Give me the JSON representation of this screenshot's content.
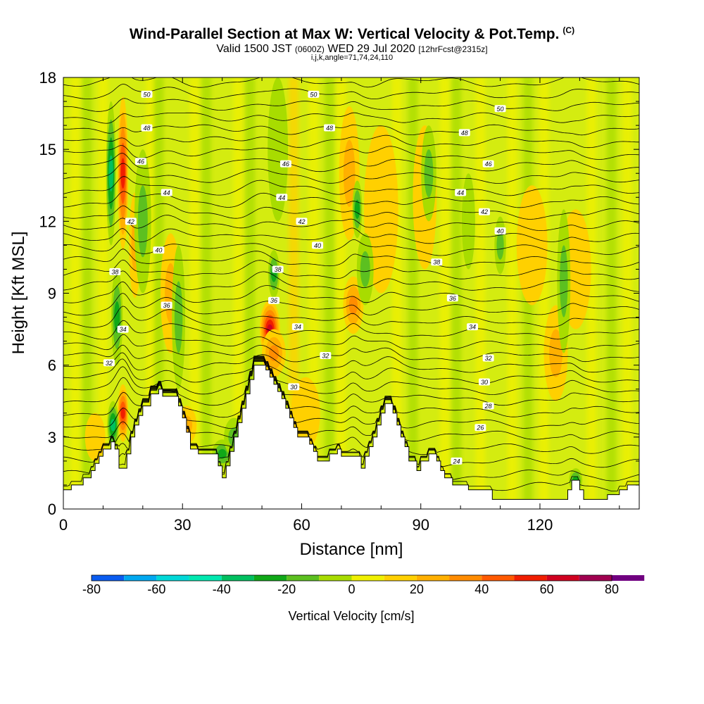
{
  "header": {
    "title": "Wind-Parallel Section at Max W: Vertical Velocity & Pot.Temp.",
    "copyright": "(C)",
    "valid_prefix": "Valid 1500 JST",
    "valid_utc": "(0600Z)",
    "valid_date": "WED 29 Jul 2020",
    "forecast": "[12hrFcst@2315z]",
    "indices": "i,j,k,angle=71,74,24,110"
  },
  "chart_data": {
    "type": "heatmap",
    "xlabel": "Distance [nm]",
    "ylabel": "Height [Kft MSL]",
    "xlim": [
      0,
      145
    ],
    "ylim": [
      0,
      18
    ],
    "x_ticks": [
      "0",
      "30",
      "60",
      "90",
      "120"
    ],
    "y_ticks": [
      "0",
      "3",
      "6",
      "9",
      "12",
      "15",
      "18"
    ],
    "colorbar": {
      "title": "Vertical Velocity [cm/s]",
      "labels": [
        "-80",
        "-60",
        "-40",
        "-20",
        "0",
        "20",
        "40",
        "60",
        "80"
      ],
      "colors": [
        "#0000ff",
        "#0a5cf0",
        "#00a8f0",
        "#00d8d8",
        "#00e8b0",
        "#00c060",
        "#10a818",
        "#5cc020",
        "#a8dc00",
        "#f0f000",
        "#ffd000",
        "#ffb000",
        "#ff8c00",
        "#ff5a00",
        "#f01e00",
        "#d00020",
        "#a00050",
        "#700080"
      ]
    },
    "terrain": [
      [
        0,
        0.8
      ],
      [
        2,
        0.8
      ],
      [
        2,
        1
      ],
      [
        5,
        1
      ],
      [
        5,
        1.3
      ],
      [
        7,
        1.3
      ],
      [
        7,
        1.6
      ],
      [
        8,
        1.6
      ],
      [
        8,
        1.9
      ],
      [
        9,
        1.9
      ],
      [
        9,
        2.2
      ],
      [
        10,
        2.2
      ],
      [
        10,
        2.5
      ],
      [
        12,
        2.5
      ],
      [
        12,
        2.8
      ],
      [
        13,
        2.8
      ],
      [
        13,
        2.5
      ],
      [
        14,
        2.5
      ],
      [
        14,
        1.7
      ],
      [
        16,
        1.7
      ],
      [
        16,
        2.3
      ],
      [
        17,
        2.3
      ],
      [
        17,
        3
      ],
      [
        18,
        3
      ],
      [
        18,
        3.5
      ],
      [
        19,
        3.5
      ],
      [
        19,
        3.9
      ],
      [
        20,
        3.9
      ],
      [
        20,
        4.3
      ],
      [
        22,
        4.3
      ],
      [
        22,
        4.8
      ],
      [
        24,
        4.8
      ],
      [
        24,
        5
      ],
      [
        25,
        5
      ],
      [
        25,
        4.7
      ],
      [
        29,
        4.7
      ],
      [
        29,
        4.3
      ],
      [
        30,
        4.3
      ],
      [
        30,
        3.8
      ],
      [
        31,
        3.8
      ],
      [
        31,
        3.2
      ],
      [
        32,
        3.2
      ],
      [
        32,
        2.5
      ],
      [
        34,
        2.5
      ],
      [
        34,
        2.3
      ],
      [
        39,
        2.3
      ],
      [
        39,
        1.8
      ],
      [
        40,
        1.8
      ],
      [
        40,
        1.3
      ],
      [
        41,
        1.3
      ],
      [
        41,
        1.8
      ],
      [
        42,
        1.8
      ],
      [
        42,
        2.4
      ],
      [
        43,
        2.4
      ],
      [
        43,
        3
      ],
      [
        44,
        3
      ],
      [
        44,
        3.6
      ],
      [
        45,
        3.6
      ],
      [
        45,
        4.2
      ],
      [
        46,
        4.2
      ],
      [
        46,
        4.8
      ],
      [
        47,
        4.8
      ],
      [
        47,
        5.4
      ],
      [
        48,
        5.4
      ],
      [
        48,
        6
      ],
      [
        51,
        6
      ],
      [
        51,
        5.8
      ],
      [
        52,
        5.8
      ],
      [
        52,
        5.5
      ],
      [
        53,
        5.5
      ],
      [
        53,
        5.2
      ],
      [
        54,
        5.2
      ],
      [
        54,
        4.9
      ],
      [
        55,
        4.9
      ],
      [
        55,
        4.6
      ],
      [
        56,
        4.6
      ],
      [
        56,
        4.2
      ],
      [
        57,
        4.2
      ],
      [
        57,
        3.8
      ],
      [
        58,
        3.8
      ],
      [
        58,
        3.4
      ],
      [
        59,
        3.4
      ],
      [
        59,
        3
      ],
      [
        62,
        3
      ],
      [
        62,
        2.7
      ],
      [
        63,
        2.7
      ],
      [
        63,
        2.4
      ],
      [
        64,
        2.4
      ],
      [
        64,
        2
      ],
      [
        67,
        2
      ],
      [
        67,
        2.3
      ],
      [
        69,
        2.3
      ],
      [
        69,
        2.5
      ],
      [
        70,
        2.5
      ],
      [
        70,
        2.2
      ],
      [
        75,
        2.2
      ],
      [
        75,
        1.7
      ],
      [
        76,
        1.7
      ],
      [
        76,
        2.2
      ],
      [
        77,
        2.2
      ],
      [
        77,
        2.6
      ],
      [
        78,
        2.6
      ],
      [
        78,
        3
      ],
      [
        79,
        3
      ],
      [
        79,
        3.5
      ],
      [
        80,
        3.5
      ],
      [
        80,
        4
      ],
      [
        81,
        4
      ],
      [
        81,
        4.4
      ],
      [
        83,
        4.4
      ],
      [
        83,
        4
      ],
      [
        84,
        4
      ],
      [
        84,
        3.5
      ],
      [
        85,
        3.5
      ],
      [
        85,
        3
      ],
      [
        86,
        3
      ],
      [
        86,
        2.6
      ],
      [
        87,
        2.6
      ],
      [
        87,
        2
      ],
      [
        89,
        2
      ],
      [
        89,
        1.6
      ],
      [
        90,
        1.6
      ],
      [
        90,
        2
      ],
      [
        92,
        2
      ],
      [
        92,
        2.3
      ],
      [
        94,
        2.3
      ],
      [
        94,
        2
      ],
      [
        95,
        2
      ],
      [
        95,
        1.6
      ],
      [
        96,
        1.6
      ],
      [
        96,
        1.3
      ],
      [
        98,
        1.3
      ],
      [
        98,
        1
      ],
      [
        102,
        1
      ],
      [
        102,
        0.8
      ],
      [
        108,
        0.8
      ],
      [
        108,
        0.4
      ],
      [
        127,
        0.4
      ],
      [
        127,
        0.8
      ],
      [
        128,
        0.8
      ],
      [
        128,
        1.2
      ],
      [
        130,
        1.2
      ],
      [
        130,
        0.8
      ],
      [
        131,
        0.8
      ],
      [
        131,
        0.4
      ],
      [
        137,
        0.4
      ],
      [
        137,
        0.6
      ],
      [
        140,
        0.6
      ],
      [
        140,
        0.8
      ],
      [
        142,
        0.8
      ],
      [
        142,
        1
      ],
      [
        145,
        1
      ]
    ],
    "updrafts": [
      {
        "x": 15,
        "y": 14,
        "w": 0.45,
        "h": 3.2,
        "value": 55
      },
      {
        "x": 15,
        "y": 4,
        "w": 0.45,
        "h": 1.2,
        "value": 50
      },
      {
        "x": 18,
        "y": 11,
        "w": 0.5,
        "h": 2.2,
        "value": 25
      },
      {
        "x": 27,
        "y": 9,
        "w": 1,
        "h": 2.5,
        "value": 22
      },
      {
        "x": 31,
        "y": 3.5,
        "w": 1,
        "h": 0.8,
        "value": 28
      },
      {
        "x": 52,
        "y": 7.5,
        "w": 1,
        "h": 1.2,
        "value": 65
      },
      {
        "x": 53,
        "y": 6.5,
        "w": 1.2,
        "h": 1,
        "value": 30
      },
      {
        "x": 72,
        "y": 14,
        "w": 1,
        "h": 2.8,
        "value": 22
      },
      {
        "x": 73,
        "y": 8.5,
        "w": 1,
        "h": 1.2,
        "value": 32
      },
      {
        "x": 80,
        "y": 12.5,
        "w": 1.8,
        "h": 3.5,
        "value": 15
      },
      {
        "x": 91,
        "y": 13,
        "w": 1.2,
        "h": 3,
        "value": 18
      },
      {
        "x": 118,
        "y": 11,
        "w": 1.6,
        "h": 2.5,
        "value": 16
      },
      {
        "x": 124,
        "y": 6.5,
        "w": 1.2,
        "h": 2,
        "value": 28
      },
      {
        "x": 129,
        "y": 10,
        "w": 1.6,
        "h": 2.5,
        "value": 18
      },
      {
        "x": 61,
        "y": 4,
        "w": 1.5,
        "h": 1.5,
        "value": 18
      },
      {
        "x": 8,
        "y": 3,
        "w": 1,
        "h": 1,
        "value": 15
      }
    ],
    "downdrafts": [
      {
        "x": 12,
        "y": 14,
        "w": 0.4,
        "h": 3,
        "value": -42
      },
      {
        "x": 13.5,
        "y": 8,
        "w": 0.5,
        "h": 2,
        "value": -30
      },
      {
        "x": 12.5,
        "y": 3.5,
        "w": 0.5,
        "h": 1,
        "value": -40
      },
      {
        "x": 20,
        "y": 12,
        "w": 0.8,
        "h": 3,
        "value": -22
      },
      {
        "x": 29,
        "y": 8,
        "w": 0.6,
        "h": 3,
        "value": -22
      },
      {
        "x": 40,
        "y": 2.3,
        "w": 1,
        "h": 0.6,
        "value": -30
      },
      {
        "x": 53,
        "y": 9.8,
        "w": 0.5,
        "h": 1,
        "value": -30
      },
      {
        "x": 54,
        "y": 15,
        "w": 1,
        "h": 3,
        "value": -18
      },
      {
        "x": 74,
        "y": 12.5,
        "w": 0.4,
        "h": 1.2,
        "value": -35
      },
      {
        "x": 76,
        "y": 10,
        "w": 0.8,
        "h": 1.5,
        "value": -22
      },
      {
        "x": 92,
        "y": 14,
        "w": 0.7,
        "h": 2,
        "value": -20
      },
      {
        "x": 102,
        "y": 12,
        "w": 0.6,
        "h": 2,
        "value": -18
      },
      {
        "x": 110,
        "y": 11,
        "w": 0.5,
        "h": 1.2,
        "value": -20
      },
      {
        "x": 126,
        "y": 9.5,
        "w": 0.6,
        "h": 3,
        "value": -28
      },
      {
        "x": 129,
        "y": 1.2,
        "w": 0.6,
        "h": 0.5,
        "value": -30
      },
      {
        "x": 43,
        "y": 3,
        "w": 1,
        "h": 0.8,
        "value": -25
      }
    ],
    "isentropes": {
      "base_y": [
        0.9,
        1.4,
        1.95,
        2.5,
        3.05,
        3.55,
        4.05,
        4.55,
        5.0,
        5.45,
        5.9,
        6.35,
        6.8,
        7.3,
        7.8,
        8.3,
        8.8,
        9.3,
        9.8,
        10.3,
        10.8,
        11.3,
        11.8,
        12.3,
        12.8,
        13.3,
        13.8,
        14.3,
        14.8,
        15.3,
        15.8,
        16.3,
        16.8,
        17.3,
        17.8
      ]
    },
    "contour_labels": [
      {
        "text": "50",
        "x": 21,
        "y": 17.3
      },
      {
        "text": "50",
        "x": 63,
        "y": 17.3
      },
      {
        "text": "50",
        "x": 110,
        "y": 16.7
      },
      {
        "text": "48",
        "x": 21,
        "y": 15.9
      },
      {
        "text": "48",
        "x": 67,
        "y": 15.9
      },
      {
        "text": "48",
        "x": 101,
        "y": 15.7
      },
      {
        "text": "46",
        "x": 19.5,
        "y": 14.5
      },
      {
        "text": "46",
        "x": 56,
        "y": 14.4
      },
      {
        "text": "46",
        "x": 107,
        "y": 14.4
      },
      {
        "text": "44",
        "x": 26,
        "y": 13.2
      },
      {
        "text": "44",
        "x": 55,
        "y": 13.0
      },
      {
        "text": "44",
        "x": 100,
        "y": 13.2
      },
      {
        "text": "42",
        "x": 17,
        "y": 12.0
      },
      {
        "text": "42",
        "x": 60,
        "y": 12.0
      },
      {
        "text": "42",
        "x": 106,
        "y": 12.4
      },
      {
        "text": "40",
        "x": 24,
        "y": 10.8
      },
      {
        "text": "40",
        "x": 64,
        "y": 11.0
      },
      {
        "text": "40",
        "x": 110,
        "y": 11.6
      },
      {
        "text": "38",
        "x": 13,
        "y": 9.9
      },
      {
        "text": "38",
        "x": 54,
        "y": 10.0
      },
      {
        "text": "38",
        "x": 94,
        "y": 10.3
      },
      {
        "text": "36",
        "x": 26,
        "y": 8.5
      },
      {
        "text": "36",
        "x": 53,
        "y": 8.7
      },
      {
        "text": "36",
        "x": 98,
        "y": 8.8
      },
      {
        "text": "34",
        "x": 15,
        "y": 7.5
      },
      {
        "text": "34",
        "x": 59,
        "y": 7.6
      },
      {
        "text": "34",
        "x": 103,
        "y": 7.6
      },
      {
        "text": "32",
        "x": 11.5,
        "y": 6.1
      },
      {
        "text": "32",
        "x": 66,
        "y": 6.4
      },
      {
        "text": "32",
        "x": 107,
        "y": 6.3
      },
      {
        "text": "30",
        "x": 58,
        "y": 5.1
      },
      {
        "text": "30",
        "x": 106,
        "y": 5.3
      },
      {
        "text": "28",
        "x": 107,
        "y": 4.3
      },
      {
        "text": "26",
        "x": 105,
        "y": 3.4
      },
      {
        "text": "24",
        "x": 99,
        "y": 2.0
      }
    ]
  }
}
